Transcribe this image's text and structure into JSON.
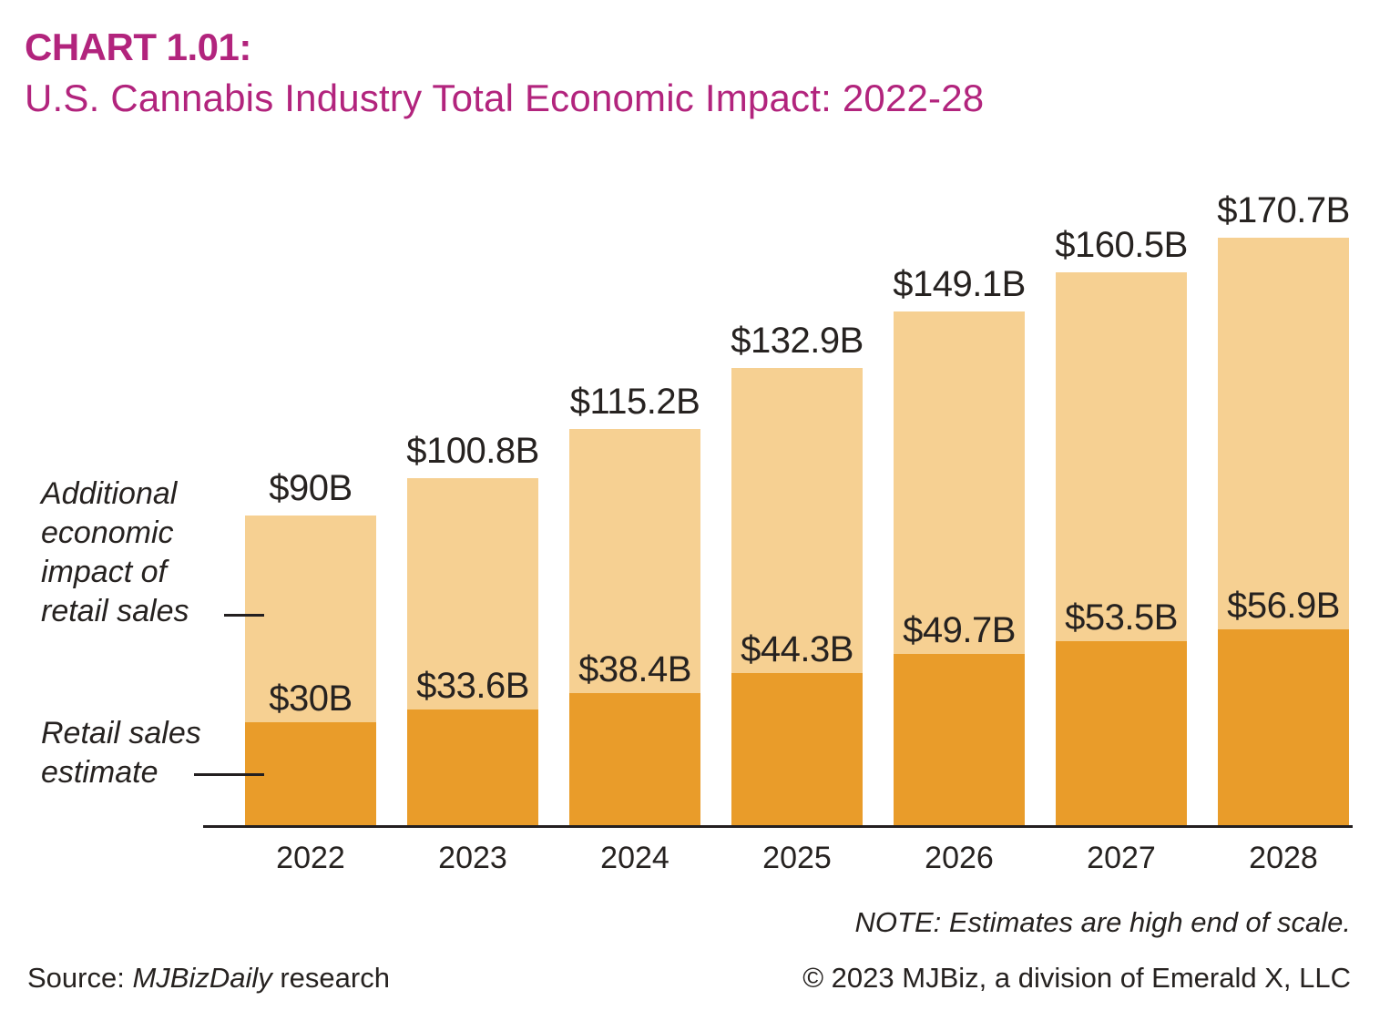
{
  "header": {
    "kicker": "CHART 1.01:",
    "title": "U.S. Cannabis Industry Total Economic Impact: 2022-28"
  },
  "colors": {
    "accent": "#B2247D",
    "bar_light": "#F6D092",
    "bar_dark": "#E99C2A",
    "text": "#262220",
    "axis": "#231F20"
  },
  "annotations": {
    "additional_lines": [
      "Additional",
      "economic",
      "impact of",
      "retail sales"
    ],
    "retail_lines": [
      "Retail sales",
      "estimate"
    ],
    "note": "NOTE: Estimates are high end of scale.",
    "source_prefix": "Source: ",
    "source_italic": "MJBizDaily",
    "source_suffix": " research",
    "copyright": "© 2023 MJBiz, a division of Emerald X, LLC"
  },
  "chart_data": {
    "type": "bar",
    "stacked": true,
    "unit": "billion USD",
    "grid": false,
    "legend_position": "left-annotations",
    "ylim": [
      0,
      180
    ],
    "categories": [
      "2022",
      "2023",
      "2024",
      "2025",
      "2026",
      "2027",
      "2028"
    ],
    "series": [
      {
        "name": "Retail sales estimate",
        "color": "#E99C2A",
        "values": [
          30,
          33.6,
          38.4,
          44.3,
          49.7,
          53.5,
          56.9
        ],
        "labels": [
          "$30B",
          "$33.6B",
          "$38.4B",
          "$44.3B",
          "$49.7B",
          "$53.5B",
          "$56.9B"
        ]
      },
      {
        "name": "Additional economic impact of retail sales",
        "color": "#F6D092",
        "values": [
          60,
          67.2,
          76.8,
          88.6,
          99.4,
          107,
          113.8
        ]
      }
    ],
    "totals": [
      90,
      100.8,
      115.2,
      132.9,
      149.1,
      160.5,
      170.7
    ],
    "total_labels": [
      "$90B",
      "$100.8B",
      "$115.2B",
      "$132.9B",
      "$149.1B",
      "$160.5B",
      "$170.7B"
    ]
  }
}
